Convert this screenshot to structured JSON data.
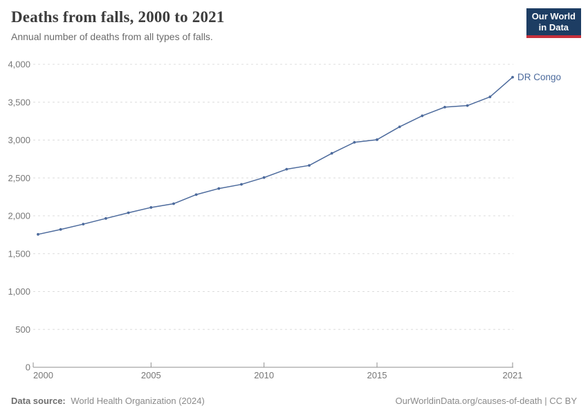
{
  "header": {
    "title": "Deaths from falls, 2000 to 2021",
    "subtitle": "Annual number of deaths from all types of falls.",
    "logo": {
      "line1": "Our World",
      "line2": "in Data",
      "bg_color": "#1d3d63",
      "accent_color": "#c7303c"
    }
  },
  "chart_data": {
    "type": "line",
    "title": "Deaths from falls, 2000 to 2021",
    "xlabel": "",
    "ylabel": "",
    "xlim": [
      2000,
      2021
    ],
    "ylim": [
      0,
      4000
    ],
    "x_ticks": [
      2000,
      2005,
      2010,
      2015,
      2021
    ],
    "y_ticks": [
      0,
      500,
      1000,
      1500,
      2000,
      2500,
      3000,
      3500,
      4000
    ],
    "grid": "horizontal-dashed",
    "legend_position": "end-of-line-label",
    "x": [
      2000,
      2001,
      2002,
      2003,
      2004,
      2005,
      2006,
      2007,
      2008,
      2009,
      2010,
      2011,
      2012,
      2013,
      2014,
      2015,
      2016,
      2017,
      2018,
      2019,
      2020,
      2021
    ],
    "series": [
      {
        "name": "DR Congo",
        "color": "#4c6a9c",
        "values": [
          1755,
          1820,
          1890,
          1965,
          2040,
          2110,
          2160,
          2280,
          2360,
          2415,
          2505,
          2615,
          2665,
          2825,
          2970,
          3005,
          3175,
          3320,
          3435,
          3455,
          3570,
          3830
        ]
      }
    ],
    "colors": {
      "grid": "#dcdcdc",
      "axis": "#8f8f8f",
      "tick_text": "#777777"
    }
  },
  "footer": {
    "source_label": "Data source:",
    "source_value": "World Health Organization (2024)",
    "credit": "OurWorldinData.org/causes-of-death | CC BY"
  }
}
